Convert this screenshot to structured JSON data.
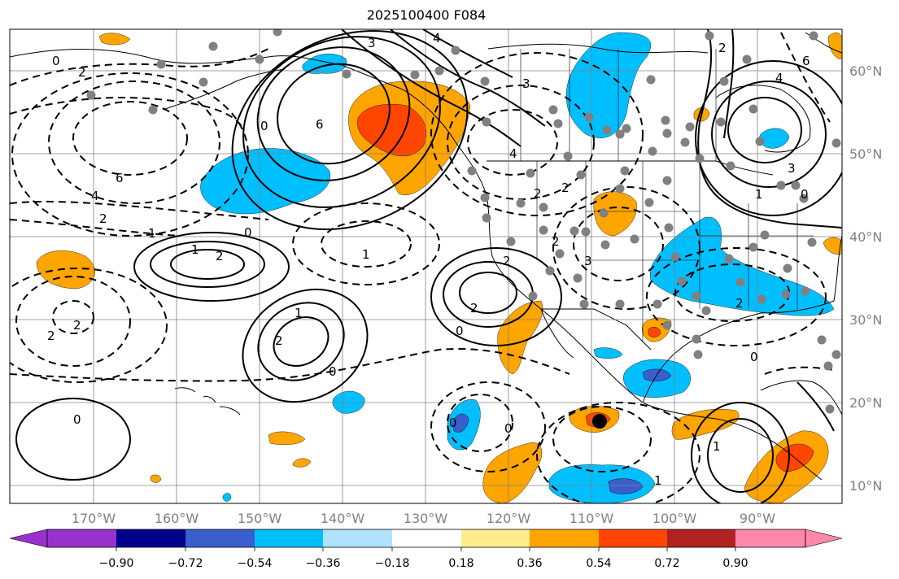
{
  "title": "2025100400 F084",
  "lon_labels": [
    "170°W",
    "160°W",
    "150°W",
    "140°W",
    "130°W",
    "120°W",
    "110°W",
    "100°W",
    "90°W"
  ],
  "lat_labels": [
    "60°N",
    "50°N",
    "40°N",
    "30°N",
    "20°N",
    "10°N"
  ],
  "colorbar": {
    "tick_labels": [
      "−0.90",
      "−0.72",
      "−0.54",
      "−0.36",
      "−0.18",
      "0.18",
      "0.36",
      "0.54",
      "0.72",
      "0.90"
    ],
    "colors": [
      "#9932cc",
      "#00008b",
      "#3a5fcd",
      "#00bfff",
      "#b0e2ff",
      "#ffffff",
      "#ffec8b",
      "#ffa500",
      "#ff4500",
      "#b22222",
      "#ff88aa"
    ]
  },
  "contour_labels": [
    "3",
    "4",
    "2",
    "0",
    "6",
    "2",
    "4",
    "6",
    "3",
    "6",
    "4",
    "4",
    "2",
    "1",
    "2",
    "2",
    "2",
    "0",
    "1",
    "2",
    "0",
    "2",
    "2",
    "2",
    "1",
    "0",
    "0",
    "0",
    "0",
    "1",
    "2",
    "0",
    "1",
    "2",
    "3",
    "1",
    "0",
    "0",
    "1",
    "2",
    "3"
  ],
  "shading_colors": {
    "light_blue": "#00bfff",
    "blue": "#3a5fcd",
    "orange": "#ffa500",
    "red_orange": "#ff4500"
  }
}
